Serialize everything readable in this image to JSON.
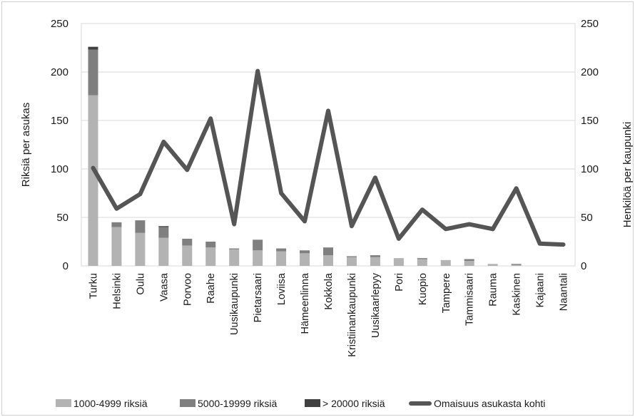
{
  "chart_data": {
    "type": "bar",
    "categories": [
      "Turku",
      "Helsinki",
      "Oulu",
      "Vaasa",
      "Porvoo",
      "Raahe",
      "Uusikaupunki",
      "Pietarsaari",
      "Loviisa",
      "Hämeenlinna",
      "Kokkola",
      "Kristiinankaupunki",
      "Uusikaarlepyy",
      "Pori",
      "Kuopio",
      "Tampere",
      "Tammisaari",
      "Rauma",
      "Kaskinen",
      "Kajaani",
      "Naantali"
    ],
    "stacked": true,
    "series": [
      {
        "name": "1000-4999 riksiä",
        "axis": "left",
        "color": "#b3b3b3",
        "values": [
          176,
          40,
          34,
          29,
          21,
          19,
          17,
          16,
          15,
          13,
          11,
          9,
          9,
          8,
          7,
          6,
          5,
          2,
          1,
          0,
          0
        ]
      },
      {
        "name": "5000-19999 riksiä",
        "axis": "left",
        "color": "#7f7f7f",
        "values": [
          47,
          5,
          13,
          11,
          7,
          6,
          1,
          11,
          3,
          3,
          8,
          1,
          2,
          0,
          1,
          0,
          2,
          0,
          1,
          0,
          0
        ]
      },
      {
        "name": "> 20000 riksiä",
        "axis": "left",
        "color": "#404040",
        "values": [
          3,
          0,
          0,
          1,
          0,
          0,
          0,
          0,
          0,
          0,
          0,
          0,
          0,
          0,
          0,
          0,
          0,
          0,
          0,
          0,
          0
        ]
      },
      {
        "name": "Omaisuus asukasta kohti",
        "type": "line",
        "axis": "right",
        "color": "#555555",
        "values": [
          101,
          59,
          74,
          128,
          99,
          152,
          43,
          201,
          75,
          46,
          160,
          41,
          91,
          28,
          58,
          38,
          43,
          38,
          80,
          23,
          22
        ]
      }
    ],
    "ylabel": "Riksiä per asukas",
    "y2label": "Henkilöä per kaupunki",
    "ylim": [
      0,
      250
    ],
    "y2lim": [
      0,
      250
    ],
    "yticks": [
      "0",
      "50",
      "100",
      "150",
      "200",
      "250"
    ],
    "y2ticks": [
      "0",
      "50",
      "100",
      "150",
      "200",
      "250"
    ],
    "grid": true,
    "legend_position": "bottom"
  }
}
